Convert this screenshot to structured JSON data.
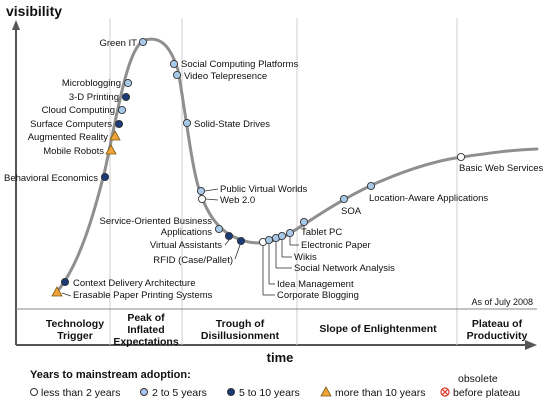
{
  "chart_data": {
    "type": "scatter",
    "title": "",
    "ylabel": "visibility",
    "xlabel": "time",
    "grid": true,
    "date_note": "As of July 2008",
    "colors": {
      "curve": "#8a8a8a",
      "less_than_2": "#ffffff",
      "two_to_five": "#a8c8e8",
      "five_to_ten": "#1b3a78",
      "more_than_ten": "#f2a33a",
      "obsolete": "#d83a2a"
    },
    "phases": [
      {
        "name": "Technology Trigger"
      },
      {
        "name": "Peak of Inflated Expectations"
      },
      {
        "name": "Trough of Disillusionment"
      },
      {
        "name": "Slope of Enlightenment"
      },
      {
        "name": "Plateau of Productivity"
      }
    ],
    "legend": {
      "title": "Years to mainstream adoption:",
      "items": [
        {
          "key": "less_than_2",
          "label": "less than 2 years",
          "marker": "circle"
        },
        {
          "key": "two_to_five",
          "label": "2 to 5 years",
          "marker": "circle"
        },
        {
          "key": "five_to_ten",
          "label": "5 to 10 years",
          "marker": "circle"
        },
        {
          "key": "more_than_ten",
          "label": "more than 10 years",
          "marker": "triangle"
        },
        {
          "key": "obsolete",
          "label": "obsolete before plateau",
          "marker": "x"
        }
      ]
    },
    "points": [
      {
        "name": "Green IT",
        "category": "two_to_five"
      },
      {
        "name": "Social Computing Platforms",
        "category": "two_to_five"
      },
      {
        "name": "Video Telepresence",
        "category": "two_to_five"
      },
      {
        "name": "Microblogging",
        "category": "two_to_five"
      },
      {
        "name": "3-D Printing",
        "category": "five_to_ten"
      },
      {
        "name": "Cloud Computing",
        "category": "two_to_five"
      },
      {
        "name": "Surface Computers",
        "category": "five_to_ten"
      },
      {
        "name": "Augmented Reality",
        "category": "more_than_ten"
      },
      {
        "name": "Mobile Robots",
        "category": "more_than_ten"
      },
      {
        "name": "Solid-State Drives",
        "category": "two_to_five"
      },
      {
        "name": "Behavioral Economics",
        "category": "five_to_ten"
      },
      {
        "name": "Public Virtual Worlds",
        "category": "two_to_five"
      },
      {
        "name": "Web 2.0",
        "category": "less_than_2"
      },
      {
        "name": "Service-Oriented Business Applications",
        "category": "two_to_five"
      },
      {
        "name": "Virtual Assistants",
        "category": "five_to_ten"
      },
      {
        "name": "RFID (Case/Pallet)",
        "category": "five_to_ten"
      },
      {
        "name": "Corporate Blogging",
        "category": "less_than_2"
      },
      {
        "name": "Idea Management",
        "category": "two_to_five"
      },
      {
        "name": "Social Network Analysis",
        "category": "two_to_five"
      },
      {
        "name": "Wikis",
        "category": "two_to_five"
      },
      {
        "name": "Electronic Paper",
        "category": "two_to_five"
      },
      {
        "name": "Tablet PC",
        "category": "two_to_five"
      },
      {
        "name": "SOA",
        "category": "two_to_five"
      },
      {
        "name": "Location-Aware Applications",
        "category": "two_to_five"
      },
      {
        "name": "Basic Web Services",
        "category": "less_than_2"
      },
      {
        "name": "Context Delivery Architecture",
        "category": "five_to_ten"
      },
      {
        "name": "Erasable Paper Printing Systems",
        "category": "more_than_ten"
      }
    ]
  }
}
